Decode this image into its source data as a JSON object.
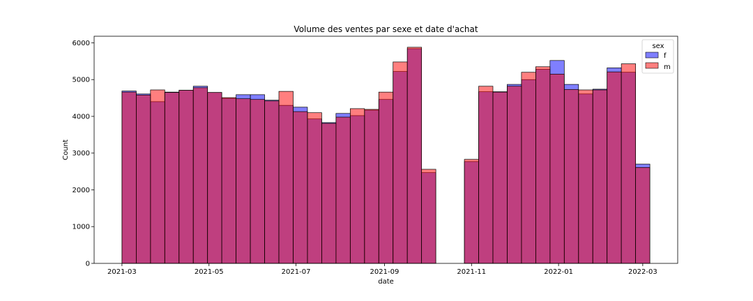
{
  "chart_data": {
    "type": "bar",
    "title": "Volume des ventes par sexe et date d'achat",
    "xlabel": "date",
    "ylabel": "Count",
    "x_tick_labels": [
      "2021-03",
      "2021-05",
      "2021-07",
      "2021-09",
      "2021-11",
      "2022-01",
      "2022-03"
    ],
    "y_ticks": [
      0,
      1000,
      2000,
      3000,
      4000,
      5000,
      6000
    ],
    "ylim": [
      0,
      6180
    ],
    "bins": [
      "2021-03-01",
      "2021-03-11",
      "2021-03-21",
      "2021-03-31",
      "2021-04-10",
      "2021-04-20",
      "2021-04-30",
      "2021-05-10",
      "2021-05-20",
      "2021-05-30",
      "2021-06-09",
      "2021-06-19",
      "2021-06-29",
      "2021-07-09",
      "2021-07-19",
      "2021-07-29",
      "2021-08-08",
      "2021-08-18",
      "2021-08-28",
      "2021-09-07",
      "2021-09-17",
      "2021-09-27",
      "2021-10-07",
      "2021-10-17",
      "2021-10-27",
      "2021-11-06",
      "2021-11-16",
      "2021-11-26",
      "2021-12-06",
      "2021-12-16",
      "2021-12-26",
      "2022-01-05",
      "2022-01-15",
      "2022-01-25",
      "2022-02-04",
      "2022-02-14",
      "2022-02-24"
    ],
    "bin_end": "2022-03-06",
    "series": [
      {
        "name": "f",
        "color": "#0000ff",
        "values": [
          4690,
          4610,
          4400,
          4660,
          4710,
          4820,
          4650,
          4490,
          4590,
          4590,
          4440,
          4300,
          4250,
          3930,
          3830,
          4080,
          4020,
          4170,
          4460,
          5220,
          5840,
          2470,
          0,
          0,
          2770,
          4670,
          4670,
          4870,
          5000,
          5280,
          5520,
          4870,
          4610,
          4740,
          5320,
          5200,
          2700
        ]
      },
      {
        "name": "m",
        "color": "#ff0000",
        "values": [
          4660,
          4580,
          4720,
          4650,
          4710,
          4780,
          4650,
          4510,
          4480,
          4460,
          4420,
          4680,
          4130,
          4100,
          3810,
          3980,
          4210,
          4190,
          4660,
          5480,
          5880,
          2560,
          0,
          0,
          2830,
          4820,
          4660,
          4820,
          5200,
          5350,
          5150,
          4730,
          4720,
          4720,
          5210,
          5430,
          2610
        ]
      }
    ],
    "legend": {
      "title": "sex",
      "position": "top-right",
      "entries": [
        "f",
        "m"
      ]
    },
    "overlap_color": "#7f3ac0",
    "grid": false
  }
}
